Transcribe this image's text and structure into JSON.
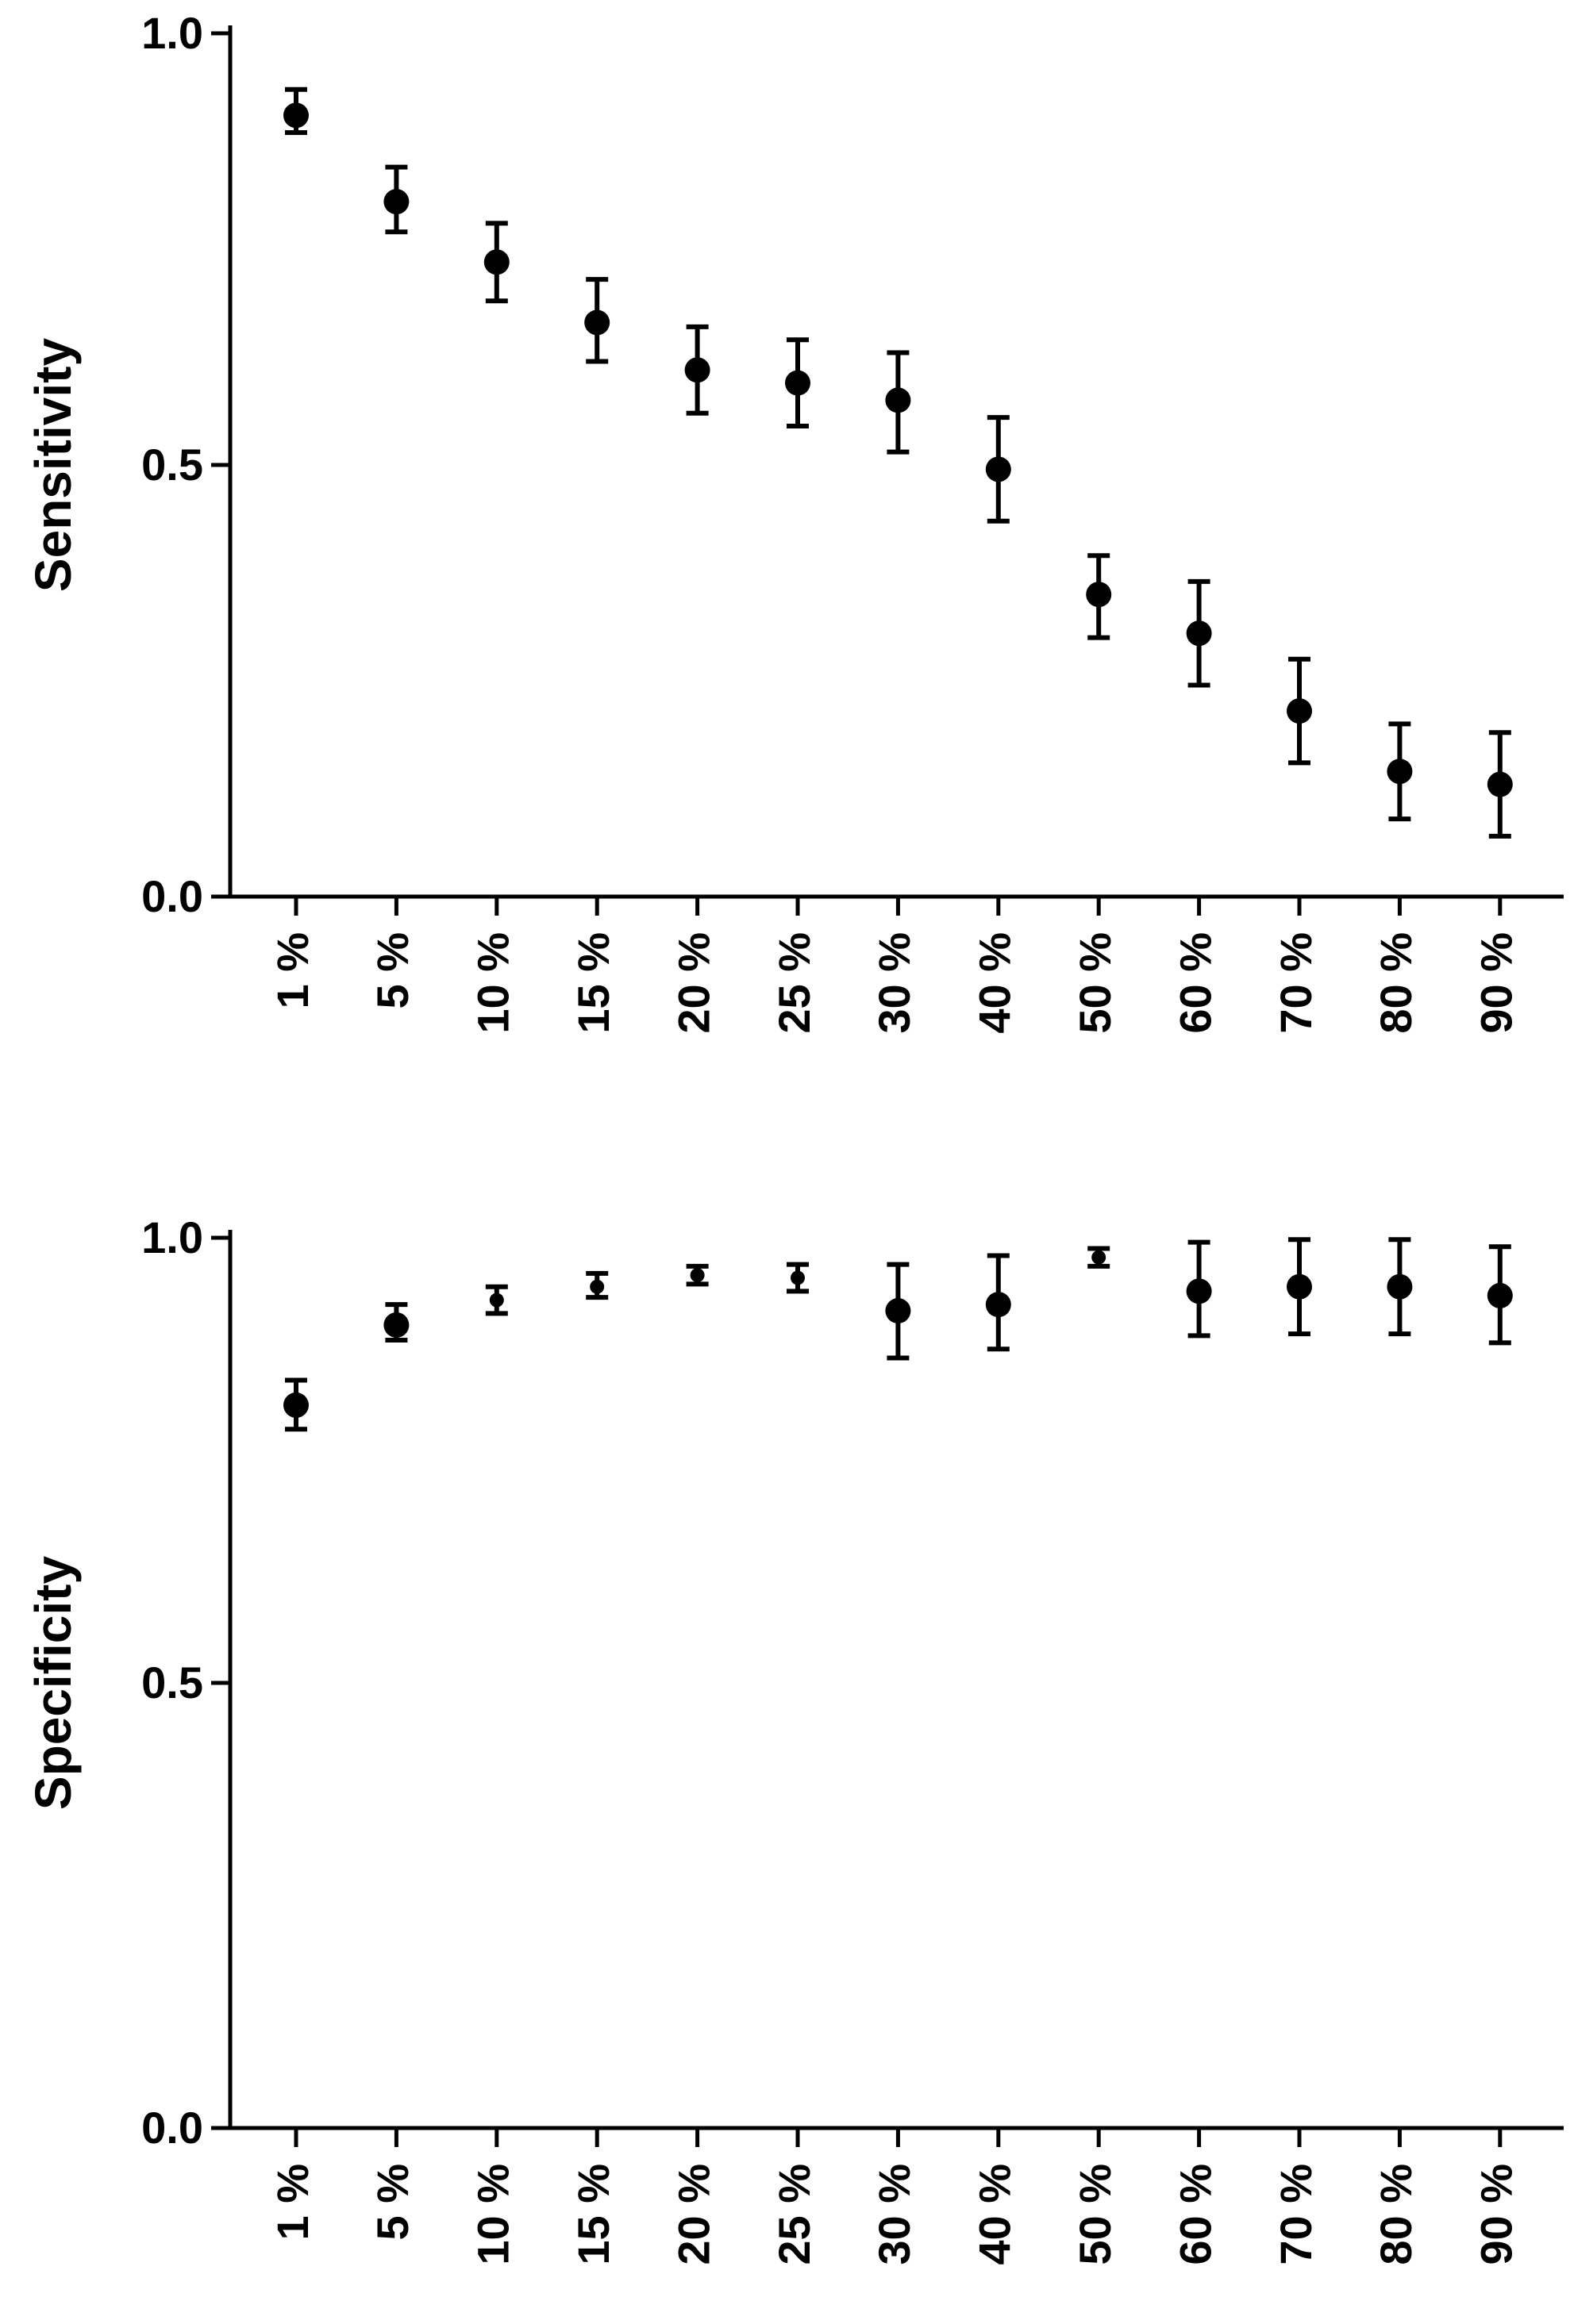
{
  "chart_data": [
    {
      "type": "scatter",
      "title": "",
      "xlabel": "",
      "ylabel": "Sensitivity",
      "ylim": [
        0,
        1
      ],
      "yticks": [
        "0.0",
        "0.5",
        "1.0"
      ],
      "grid": false,
      "categories": [
        "1 %",
        "5 %",
        "10 %",
        "15 %",
        "20 %",
        "25 %",
        "30 %",
        "40 %",
        "50 %",
        "60 %",
        "70 %",
        "80 %",
        "90 %"
      ],
      "values": [
        0.905,
        0.805,
        0.735,
        0.665,
        0.61,
        0.595,
        0.575,
        0.495,
        0.35,
        0.305,
        0.215,
        0.145,
        0.13
      ],
      "error_low": [
        0.885,
        0.77,
        0.69,
        0.62,
        0.56,
        0.545,
        0.515,
        0.435,
        0.3,
        0.245,
        0.155,
        0.09,
        0.07
      ],
      "error_high": [
        0.935,
        0.845,
        0.78,
        0.715,
        0.66,
        0.645,
        0.63,
        0.555,
        0.395,
        0.365,
        0.275,
        0.2,
        0.19
      ],
      "color": "#000000"
    },
    {
      "type": "scatter",
      "title": "",
      "xlabel": "",
      "ylabel": "Specificity",
      "ylim": [
        0,
        1
      ],
      "yticks": [
        "0.0",
        "0.5",
        "1.0"
      ],
      "grid": false,
      "categories": [
        "1 %",
        "5 %",
        "10 %",
        "15 %",
        "20 %",
        "25 %",
        "30 %",
        "40 %",
        "50 %",
        "60 %",
        "70 %",
        "80 %",
        "90 %"
      ],
      "values": [
        0.812,
        0.902,
        0.93,
        0.945,
        0.958,
        0.955,
        0.918,
        0.925,
        0.978,
        0.94,
        0.945,
        0.945,
        0.935
      ],
      "error_low": [
        0.785,
        0.885,
        0.915,
        0.933,
        0.948,
        0.94,
        0.865,
        0.875,
        0.968,
        0.89,
        0.892,
        0.892,
        0.882
      ],
      "error_high": [
        0.84,
        0.925,
        0.945,
        0.96,
        0.968,
        0.97,
        0.97,
        0.98,
        0.988,
        0.995,
        0.998,
        0.998,
        0.99
      ],
      "color": "#000000"
    }
  ]
}
